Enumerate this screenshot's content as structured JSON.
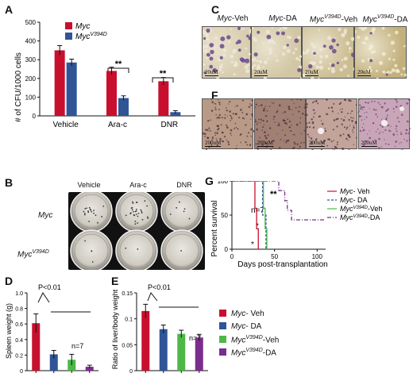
{
  "panels": {
    "A": "A",
    "B": "B",
    "C": "C",
    "D": "D",
    "E": "E",
    "F": "F",
    "G": "G"
  },
  "panelA": {
    "legend": [
      "Myc",
      "Myc",
      "V394D"
    ],
    "ylabel": "# of CFU/1000 cells",
    "sig": "**"
  },
  "panelB": {
    "cols": [
      "Vehicle",
      "Ara-c",
      "DNR"
    ],
    "rows": [
      "Myc",
      "Myc",
      "V394D"
    ]
  },
  "panelC": {
    "titles": [
      {
        "gene": "Myc",
        "sup": "",
        "suffix": "-Veh"
      },
      {
        "gene": "Myc",
        "sup": "",
        "suffix": "-DA"
      },
      {
        "gene": "Myc",
        "sup": "V394D",
        "suffix": "-Veh"
      },
      {
        "gene": "Myc",
        "sup": "V394D",
        "suffix": "-DA"
      }
    ],
    "scale": "20uM"
  },
  "panelF": {
    "scale": "200uM"
  },
  "panelD": {
    "pval": "P<0.01",
    "n": "n=7",
    "ylabel": "Spleen weight (g)"
  },
  "panelE": {
    "pval": "P<0.01",
    "n": "n=7",
    "ylabel": "Ratio of liver/body weight"
  },
  "legendDE": [
    {
      "gene": "Myc",
      "sup": "",
      "suffix": "- Veh",
      "color": "#c8102e"
    },
    {
      "gene": "Myc",
      "sup": "",
      "suffix": "- DA",
      "color": "#2f5597"
    },
    {
      "gene": "Myc",
      "sup": "V394D",
      "suffix": "-Veh",
      "color": "#4db848"
    },
    {
      "gene": "Myc",
      "sup": "V394D",
      "suffix": "-DA",
      "color": "#7b2d8e"
    }
  ],
  "panelG": {
    "legend": [
      {
        "gene": "Myc",
        "sup": "",
        "suffix": "- Veh",
        "color": "#c8102e"
      },
      {
        "gene": "Myc",
        "sup": "",
        "suffix": "- DA",
        "color": "#2f5597"
      },
      {
        "gene": "Myc",
        "sup": "V394D",
        "suffix": "-Veh",
        "color": "#4db848"
      },
      {
        "gene": "Myc",
        "sup": "V394D",
        "suffix": "-DA",
        "color": "#7b2d8e"
      }
    ],
    "n": "n=7",
    "sig": "**",
    "sig1": "*",
    "sig2": "*"
  },
  "colors": {
    "red": "#c8102e",
    "blue": "#2f5597",
    "green": "#4db848",
    "purple": "#7b2d8e"
  },
  "chart_data": [
    {
      "id": "A",
      "type": "bar",
      "categories": [
        "Vehicle",
        "Ara-c",
        "DNR"
      ],
      "series": [
        {
          "name": "Myc",
          "values": [
            350,
            240,
            185
          ],
          "errors": [
            25,
            20,
            20
          ]
        },
        {
          "name": "MycV394D",
          "values": [
            285,
            95,
            20
          ],
          "errors": [
            18,
            12,
            8
          ]
        }
      ],
      "ylabel": "# of CFU/1000 cells",
      "ylim": [
        0,
        500
      ],
      "yticks": [
        "0",
        "100",
        "200",
        "300",
        "400",
        "500"
      ]
    },
    {
      "id": "D",
      "type": "bar",
      "categories": [
        "",
        "",
        "",
        ""
      ],
      "values": [
        0.61,
        0.21,
        0.14,
        0.05
      ],
      "errors": [
        0.12,
        0.05,
        0.07,
        0.02
      ],
      "ylabel": "Spleen weight (g)",
      "ylim": [
        0,
        1.0
      ],
      "yticks": [
        "0",
        "0.2",
        "0.4",
        "0.6",
        "0.8",
        "1.0"
      ]
    },
    {
      "id": "E",
      "type": "bar",
      "categories": [
        "",
        "",
        "",
        ""
      ],
      "values": [
        0.115,
        0.08,
        0.071,
        0.064
      ],
      "errors": [
        0.013,
        0.008,
        0.007,
        0.006
      ],
      "ylabel": "Ratio of liver/body weight",
      "ylim": [
        0,
        0.15
      ],
      "yticks": [
        "0",
        "0.05",
        "0.1",
        "0.15"
      ]
    },
    {
      "id": "G",
      "type": "line",
      "xlabel": "Days post-transplantation",
      "ylabel": "Percent survival",
      "xlim": [
        0,
        110
      ],
      "ylim": [
        0,
        100
      ],
      "xticks": [
        "0",
        "50",
        "100"
      ],
      "yticks": [
        "0",
        "50",
        "100"
      ],
      "series": [
        {
          "name": "Myc- Veh",
          "x": [
            0,
            25,
            27,
            29,
            31
          ],
          "y": [
            100,
            100,
            60,
            30,
            0
          ]
        },
        {
          "name": "Myc- DA",
          "x": [
            0,
            32,
            36,
            40
          ],
          "y": [
            100,
            100,
            50,
            0
          ]
        },
        {
          "name": "MycV394D-Veh",
          "x": [
            0,
            35,
            37,
            39,
            41
          ],
          "y": [
            100,
            100,
            60,
            30,
            0
          ]
        },
        {
          "name": "MycV394D-DA",
          "x": [
            0,
            48,
            55,
            62,
            65,
            70,
            110
          ],
          "y": [
            100,
            100,
            86,
            71,
            57,
            43,
            43
          ]
        }
      ]
    }
  ]
}
